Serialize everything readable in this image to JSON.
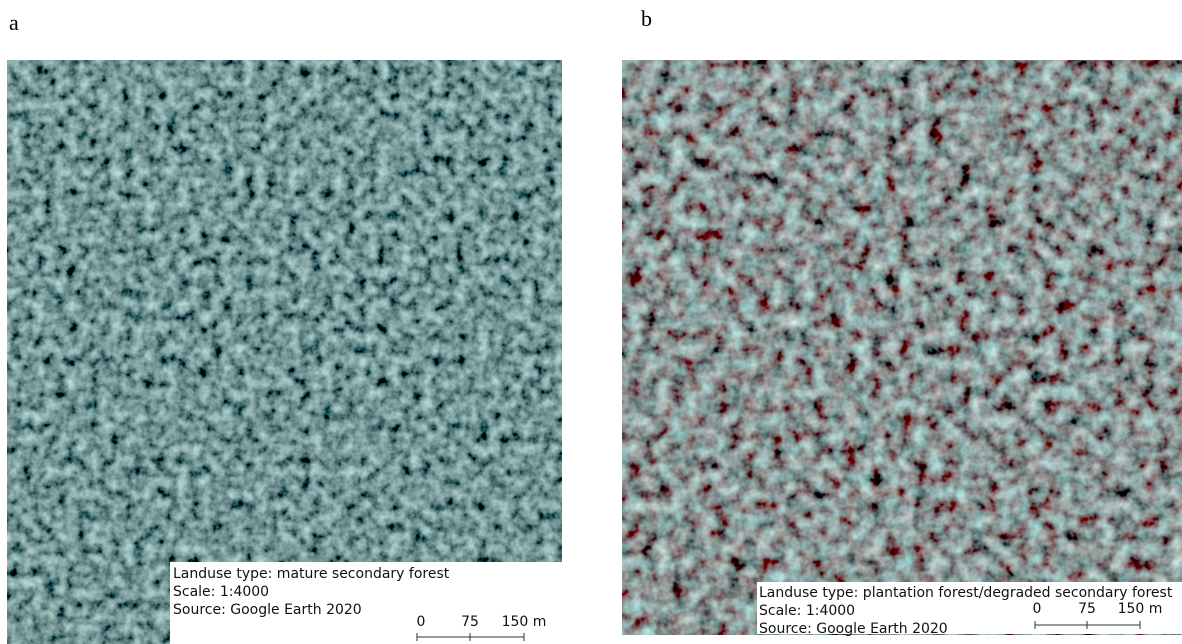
{
  "panels": [
    {
      "label": "a",
      "caption": [
        "Landuse type: mature secondary forest",
        "Scale: 1:4000",
        "Source: Google Earth 2020"
      ],
      "scale_bar": [
        "0",
        "75",
        "150 m"
      ]
    },
    {
      "label": "b",
      "caption": [
        "Landuse type: plantation forest/degraded secondary forest",
        "Scale: 1:4000",
        "Source: Google Earth 2020"
      ],
      "scale_bar": [
        "0",
        "75",
        "150 m"
      ]
    }
  ]
}
